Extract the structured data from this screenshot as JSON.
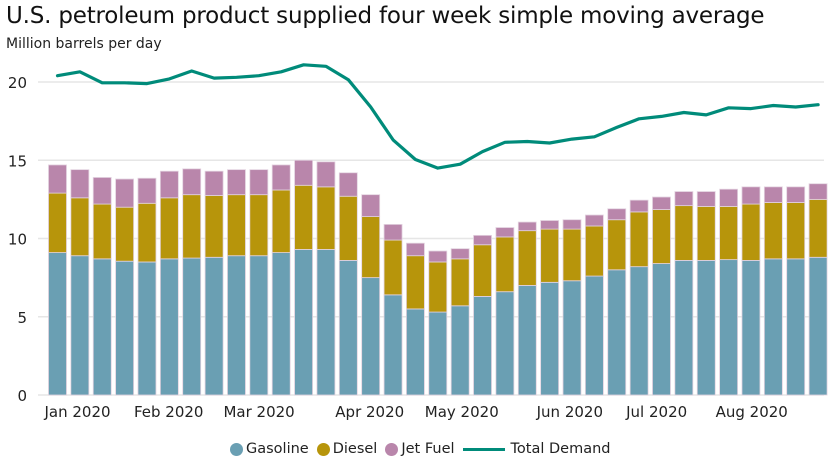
{
  "chart_data": {
    "type": "bar",
    "stacked": true,
    "title": "U.S. petroleum product supplied four week simple moving average",
    "subtitle": "Million barrels per day",
    "xlabel": "",
    "ylabel": "Million barrels per day",
    "ylim": [
      0,
      20
    ],
    "yticks": [
      0,
      5,
      10,
      15,
      20
    ],
    "grid": true,
    "x_tick_labels": [
      {
        "label": "Jan 2020",
        "index": 0
      },
      {
        "label": "Feb 2020",
        "index": 4
      },
      {
        "label": "Mar 2020",
        "index": 8
      },
      {
        "label": "Apr 2020",
        "index": 13
      },
      {
        "label": "May 2020",
        "index": 17
      },
      {
        "label": "Jun 2020",
        "index": 22
      },
      {
        "label": "Jul 2020",
        "index": 26
      },
      {
        "label": "Aug 2020",
        "index": 30
      }
    ],
    "n_periods": 35,
    "series": [
      {
        "name": "Gasoline",
        "type": "bar",
        "color": "#6a9fb3",
        "values": [
          9.1,
          8.9,
          8.7,
          8.55,
          8.5,
          8.7,
          8.75,
          8.8,
          8.9,
          8.9,
          9.1,
          9.3,
          9.3,
          8.6,
          7.5,
          6.4,
          5.5,
          5.3,
          5.7,
          6.3,
          6.6,
          7.0,
          7.2,
          7.3,
          7.6,
          8.0,
          8.2,
          8.4,
          8.6,
          8.6,
          8.65,
          8.6,
          8.7,
          8.7,
          8.8
        ]
      },
      {
        "name": "Diesel",
        "type": "bar",
        "color": "#b7950b",
        "values": [
          3.8,
          3.7,
          3.5,
          3.45,
          3.75,
          3.9,
          4.05,
          3.95,
          3.9,
          3.9,
          4.0,
          4.1,
          4.0,
          4.1,
          3.9,
          3.5,
          3.4,
          3.2,
          3.0,
          3.3,
          3.5,
          3.5,
          3.4,
          3.3,
          3.2,
          3.2,
          3.5,
          3.45,
          3.5,
          3.45,
          3.4,
          3.6,
          3.6,
          3.6,
          3.7
        ]
      },
      {
        "name": "Jet Fuel",
        "type": "bar",
        "color": "#b986ab",
        "values": [
          1.8,
          1.8,
          1.7,
          1.8,
          1.6,
          1.7,
          1.65,
          1.55,
          1.6,
          1.6,
          1.6,
          1.6,
          1.6,
          1.5,
          1.4,
          1.0,
          0.8,
          0.7,
          0.65,
          0.6,
          0.6,
          0.55,
          0.55,
          0.6,
          0.7,
          0.7,
          0.75,
          0.8,
          0.9,
          0.95,
          1.1,
          1.1,
          1.0,
          1.0,
          1.0
        ]
      },
      {
        "name": "Total Demand",
        "type": "line",
        "color": "#008b7a",
        "values": [
          20.4,
          20.65,
          19.95,
          19.95,
          19.9,
          20.2,
          20.7,
          20.25,
          20.3,
          20.4,
          20.65,
          21.1,
          21.0,
          20.15,
          18.4,
          16.3,
          15.05,
          14.5,
          14.75,
          15.55,
          16.15,
          16.2,
          16.1,
          16.35,
          16.5,
          17.1,
          17.65,
          17.8,
          18.05,
          17.9,
          18.35,
          18.3,
          18.5,
          18.4,
          18.55
        ]
      }
    ],
    "legend": {
      "placement": "bottom-center",
      "entries": [
        {
          "label": "Gasoline",
          "symbol": "dot",
          "color": "#6a9fb3"
        },
        {
          "label": "Diesel",
          "symbol": "dot",
          "color": "#b7950b"
        },
        {
          "label": "Jet Fuel",
          "symbol": "dot",
          "color": "#b986ab"
        },
        {
          "label": "Total Demand",
          "symbol": "line",
          "color": "#008b7a"
        }
      ]
    }
  }
}
